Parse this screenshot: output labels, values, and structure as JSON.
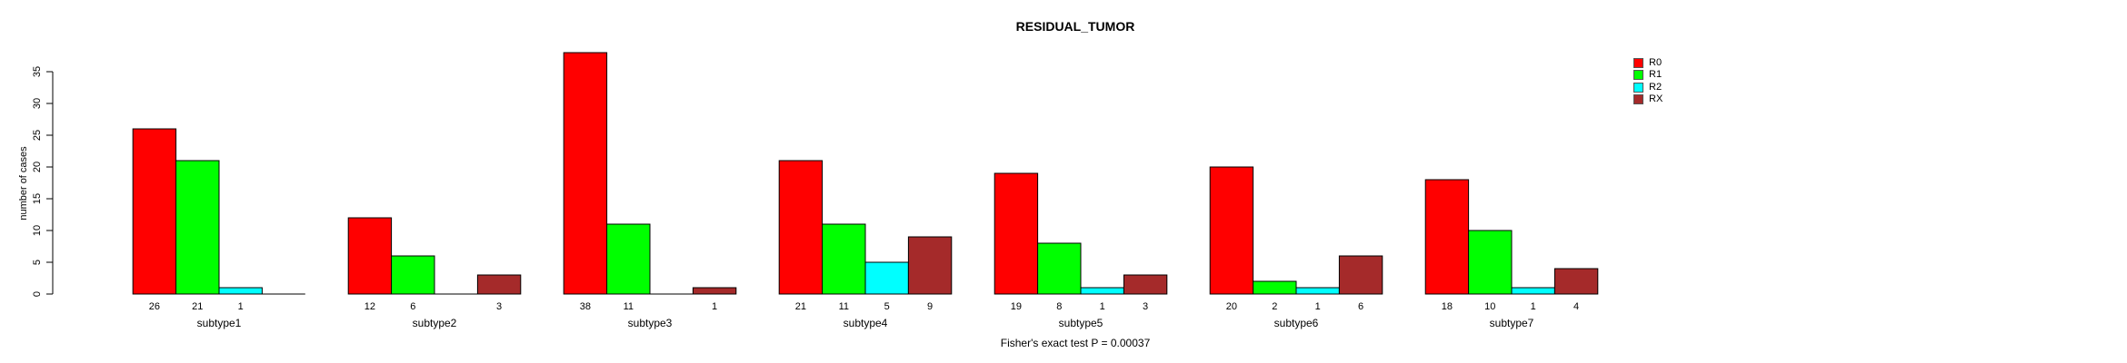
{
  "chart_data": {
    "type": "bar",
    "title": "RESIDUAL_TUMOR",
    "ylabel": "number of cases",
    "xlabel": "",
    "footnote": "Fisher's exact test P = 0.00037",
    "categories": [
      "subtype1",
      "subtype2",
      "subtype3",
      "subtype4",
      "subtype5",
      "subtype6",
      "subtype7"
    ],
    "series": [
      {
        "name": "R0",
        "color": "#FF0000",
        "values": [
          26,
          12,
          38,
          21,
          19,
          20,
          18
        ]
      },
      {
        "name": "R1",
        "color": "#00FF00",
        "values": [
          21,
          6,
          11,
          11,
          8,
          2,
          10
        ]
      },
      {
        "name": "R2",
        "color": "#00FFFF",
        "values": [
          1,
          0,
          0,
          5,
          1,
          1,
          1
        ]
      },
      {
        "name": "RX",
        "color": "#A52A2A",
        "values": [
          0,
          3,
          1,
          9,
          3,
          6,
          4
        ]
      }
    ],
    "bar_value_labels_shown": true,
    "zero_values_unlabeled": true,
    "yticks": [
      0,
      5,
      10,
      15,
      20,
      25,
      30,
      35
    ],
    "ylim": [
      0,
      38
    ],
    "grid": false,
    "legend_position": "right",
    "axis_color": "#000000",
    "bar_border_color": "#000000",
    "background_color": "#FFFFFF"
  }
}
